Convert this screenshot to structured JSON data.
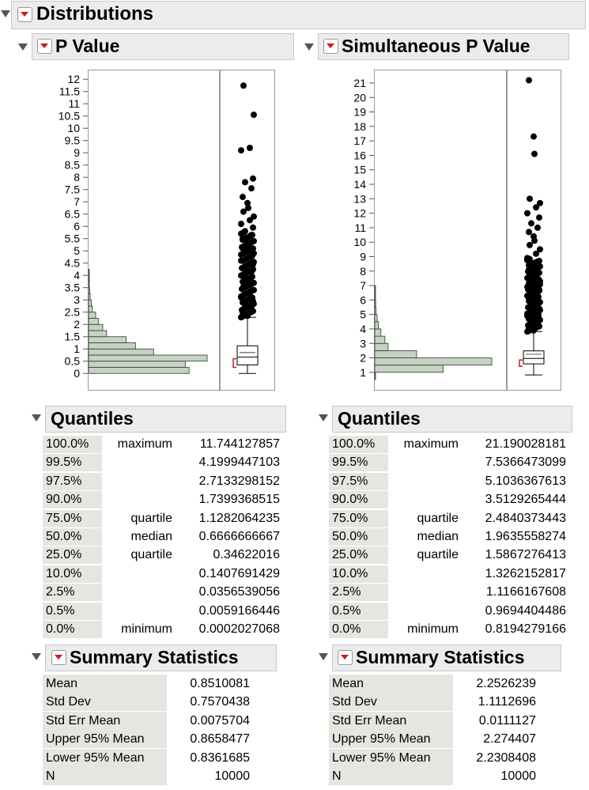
{
  "report": {
    "title": "Distributions"
  },
  "panels": [
    {
      "title": "P Value",
      "quantiles_title": "Quantiles",
      "quantiles": [
        {
          "pct": "100.0%",
          "label": "maximum",
          "value": "11.744127857"
        },
        {
          "pct": "99.5%",
          "label": "",
          "value": "4.1999447103"
        },
        {
          "pct": "97.5%",
          "label": "",
          "value": "2.7133298152"
        },
        {
          "pct": "90.0%",
          "label": "",
          "value": "1.7399368515"
        },
        {
          "pct": "75.0%",
          "label": "quartile",
          "value": "1.1282064235"
        },
        {
          "pct": "50.0%",
          "label": "median",
          "value": "0.6666666667"
        },
        {
          "pct": "25.0%",
          "label": "quartile",
          "value": "0.34622016"
        },
        {
          "pct": "10.0%",
          "label": "",
          "value": "0.1407691429"
        },
        {
          "pct": "2.5%",
          "label": "",
          "value": "0.0356539056"
        },
        {
          "pct": "0.5%",
          "label": "",
          "value": "0.0059166446"
        },
        {
          "pct": "0.0%",
          "label": "minimum",
          "value": "0.0002027068"
        }
      ],
      "summary_title": "Summary Statistics",
      "summary": [
        {
          "label": "Mean",
          "value": "0.8510081"
        },
        {
          "label": "Std Dev",
          "value": "0.7570438"
        },
        {
          "label": "Std Err Mean",
          "value": "0.0075704"
        },
        {
          "label": "Upper 95% Mean",
          "value": "0.8658477"
        },
        {
          "label": "Lower 95% Mean",
          "value": "0.8361685"
        },
        {
          "label": "N",
          "value": "10000"
        }
      ]
    },
    {
      "title": "Simultaneous P Value",
      "quantiles_title": "Quantiles",
      "quantiles": [
        {
          "pct": "100.0%",
          "label": "maximum",
          "value": "21.190028181"
        },
        {
          "pct": "99.5%",
          "label": "",
          "value": "7.5366473099"
        },
        {
          "pct": "97.5%",
          "label": "",
          "value": "5.1036367613"
        },
        {
          "pct": "90.0%",
          "label": "",
          "value": "3.5129265444"
        },
        {
          "pct": "75.0%",
          "label": "quartile",
          "value": "2.4840373443"
        },
        {
          "pct": "50.0%",
          "label": "median",
          "value": "1.9635558274"
        },
        {
          "pct": "25.0%",
          "label": "quartile",
          "value": "1.5867276413"
        },
        {
          "pct": "10.0%",
          "label": "",
          "value": "1.3262152817"
        },
        {
          "pct": "2.5%",
          "label": "",
          "value": "1.1166167608"
        },
        {
          "pct": "0.5%",
          "label": "",
          "value": "0.9694404486"
        },
        {
          "pct": "0.0%",
          "label": "minimum",
          "value": "0.8194279166"
        }
      ],
      "summary_title": "Summary Statistics",
      "summary": [
        {
          "label": "Mean",
          "value": "2.2526239"
        },
        {
          "label": "Std Dev",
          "value": "1.1112696"
        },
        {
          "label": "Std Err Mean",
          "value": "0.0111127"
        },
        {
          "label": "Upper 95% Mean",
          "value": "2.274407"
        },
        {
          "label": "Lower 95% Mean",
          "value": "2.2308408"
        },
        {
          "label": "N",
          "value": "10000"
        }
      ]
    }
  ],
  "chart_data": [
    {
      "type": "bar",
      "orientation": "horizontal",
      "title": "",
      "ylim": [
        -0.25,
        12.2
      ],
      "y_ticks": [
        "0",
        "0.5",
        "1",
        "1.5",
        "2",
        "2.5",
        "3",
        "3.5",
        "4",
        "4.5",
        "5",
        "5.5",
        "6",
        "6.5",
        "7",
        "7.5",
        "8",
        "8.5",
        "9",
        "9.5",
        "10",
        "10.5",
        "11",
        "11.5",
        "12"
      ],
      "bin_width": 0.25,
      "bin_starts": [
        0,
        0.25,
        0.5,
        0.75,
        1.0,
        1.25,
        1.5,
        1.75,
        2.0,
        2.25,
        2.5,
        2.75,
        3.0,
        3.25,
        3.5,
        3.75,
        4.0
      ],
      "bin_counts": [
        1840,
        1770,
        2170,
        1190,
        860,
        690,
        330,
        260,
        180,
        130,
        70,
        50,
        30,
        20,
        10,
        8,
        5
      ],
      "box": {
        "min": 0.0002027068,
        "q1": 0.34622016,
        "median": 0.6666666667,
        "q3": 1.1282064235,
        "whisker_high": 2.29,
        "mean": 0.8510081,
        "mean_ci": [
          0.8361685,
          0.8658477
        ]
      },
      "outlier_values": [
        2.35,
        2.5,
        2.65,
        2.8,
        2.95,
        3.1,
        3.25,
        3.4,
        3.55,
        3.7,
        3.85,
        4.0,
        4.15,
        4.3,
        4.45,
        4.6,
        4.75,
        4.9,
        5.05,
        5.2,
        5.35,
        5.5,
        5.65,
        5.8,
        5.95,
        6.1,
        6.25,
        6.4,
        6.6,
        6.75,
        6.95,
        7.2,
        7.55,
        7.8,
        7.95,
        9.1,
        9.2,
        10.55,
        11.74
      ]
    },
    {
      "type": "bar",
      "orientation": "horizontal",
      "title": "",
      "ylim": [
        0.5,
        21.6
      ],
      "y_ticks": [
        "1",
        "2",
        "3",
        "4",
        "5",
        "6",
        "7",
        "8",
        "9",
        "10",
        "11",
        "12",
        "13",
        "14",
        "15",
        "16",
        "17",
        "18",
        "19",
        "20",
        "21"
      ],
      "bin_width": 0.5,
      "bin_starts": [
        0.5,
        1.0,
        1.5,
        2.0,
        2.5,
        3.0,
        3.5,
        4.0,
        4.5,
        5.0,
        5.5,
        6.0,
        6.5
      ],
      "bin_counts": [
        30,
        2560,
        4370,
        1560,
        500,
        380,
        230,
        140,
        90,
        50,
        35,
        20,
        10
      ],
      "box": {
        "min": 0.8194279166,
        "q1": 1.5867276413,
        "median": 1.9635558274,
        "q3": 2.4840373443,
        "whisker_high": 3.82,
        "mean": 2.2526239,
        "mean_ci": [
          2.2308408,
          2.274407
        ]
      },
      "outlier_values": [
        3.9,
        4.1,
        4.3,
        4.5,
        4.7,
        4.9,
        5.1,
        5.3,
        5.5,
        5.7,
        5.9,
        6.1,
        6.3,
        6.5,
        6.7,
        6.9,
        7.1,
        7.3,
        7.5,
        7.7,
        7.9,
        8.1,
        8.3,
        8.5,
        8.7,
        8.9,
        9.2,
        9.5,
        9.8,
        10.1,
        10.4,
        10.7,
        11.0,
        11.3,
        11.7,
        12.0,
        12.4,
        12.7,
        13.0,
        16.1,
        17.3,
        21.19
      ]
    }
  ]
}
